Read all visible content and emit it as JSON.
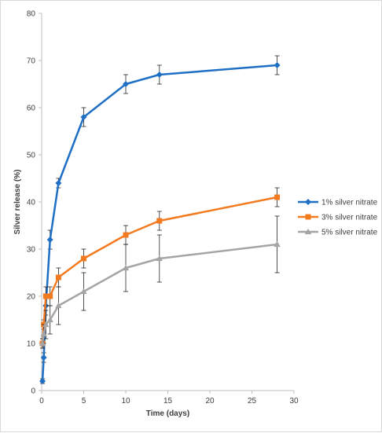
{
  "chart_data": {
    "type": "line",
    "title": "",
    "xlabel": "Time (days)",
    "ylabel": "Silver release (%)",
    "xlim": [
      0,
      30
    ],
    "ylim": [
      0,
      80
    ],
    "x_ticks": [
      0,
      5,
      10,
      15,
      20,
      25,
      30
    ],
    "y_ticks": [
      0,
      10,
      20,
      30,
      40,
      50,
      60,
      70,
      80
    ],
    "grid": false,
    "legend_position": "right",
    "series": [
      {
        "name": "1% silver nitrate",
        "color": "#1f6fc5",
        "marker": "diamond",
        "x": [
          0.1,
          0.25,
          0.5,
          1,
          2,
          5,
          10,
          14,
          28
        ],
        "y": [
          2,
          7,
          18,
          32,
          44,
          58,
          65,
          67,
          69
        ],
        "error": [
          0.5,
          1,
          2,
          2,
          1,
          2,
          2,
          2,
          2
        ]
      },
      {
        "name": "3% silver nitrate",
        "color": "#f47a20",
        "marker": "square",
        "x": [
          0.1,
          0.25,
          0.5,
          1,
          2,
          5,
          10,
          14,
          28
        ],
        "y": [
          10,
          14,
          20,
          20,
          24,
          28,
          33,
          36,
          41
        ],
        "error": [
          1,
          1,
          2,
          2,
          2,
          2,
          2,
          2,
          2
        ]
      },
      {
        "name": "5% silver nitrate",
        "color": "#a5a5a5",
        "marker": "triangle",
        "x": [
          0.1,
          0.25,
          0.5,
          1,
          2,
          5,
          10,
          14,
          28
        ],
        "y": [
          10,
          12,
          14,
          15,
          18,
          21,
          26,
          28,
          31
        ],
        "error": [
          1,
          2,
          3,
          3,
          4,
          4,
          5,
          5,
          6
        ]
      }
    ]
  }
}
